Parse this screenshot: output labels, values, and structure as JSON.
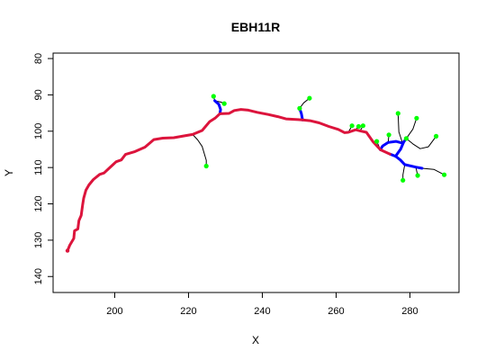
{
  "chart_data": {
    "type": "line",
    "title": "EBH11R",
    "xlabel": "X",
    "ylabel": "Y",
    "xlim": [
      183.3,
      293.3
    ],
    "ylim": [
      144.4,
      78.5
    ],
    "y_reversed": true,
    "x_ticks": [
      200,
      220,
      240,
      260,
      280
    ],
    "y_ticks": [
      80,
      90,
      100,
      110,
      120,
      130,
      140
    ],
    "grid": false,
    "legend": "none",
    "colors": {
      "main_path": "#dc143c",
      "secondary_path": "#0000ff",
      "branch": "#000000",
      "endpoint": "#00ff00"
    },
    "series": [
      {
        "role": "main_path",
        "points": [
          [
            187.2,
            132.9
          ],
          [
            187.8,
            131.4
          ],
          [
            188.9,
            129.5
          ],
          [
            189.1,
            127.4
          ],
          [
            190.0,
            126.9
          ],
          [
            190.3,
            124.6
          ],
          [
            190.9,
            123.2
          ],
          [
            191.3,
            120.3
          ],
          [
            191.6,
            118.4
          ],
          [
            192.2,
            116.2
          ],
          [
            193.0,
            114.8
          ],
          [
            194.2,
            113.3
          ],
          [
            195.9,
            111.9
          ],
          [
            197.1,
            111.5
          ],
          [
            198.7,
            110.0
          ],
          [
            200.4,
            108.4
          ],
          [
            201.8,
            107.9
          ],
          [
            202.9,
            106.4
          ],
          [
            205.5,
            105.6
          ],
          [
            208.2,
            104.4
          ],
          [
            210.6,
            102.3
          ],
          [
            213.0,
            101.9
          ],
          [
            216.0,
            101.8
          ],
          [
            219.3,
            101.2
          ],
          [
            221.1,
            100.9
          ],
          [
            223.7,
            99.8
          ],
          [
            225.7,
            97.4
          ],
          [
            227.2,
            96.4
          ],
          [
            228.5,
            95.2
          ],
          [
            231.0,
            95.1
          ],
          [
            232.4,
            94.3
          ],
          [
            234.2,
            94.0
          ],
          [
            236.2,
            94.2
          ],
          [
            238.6,
            94.8
          ],
          [
            241.6,
            95.4
          ],
          [
            244.2,
            96.0
          ],
          [
            246.4,
            96.6
          ],
          [
            249.7,
            96.8
          ],
          [
            250.9,
            96.9
          ],
          [
            252.9,
            97.1
          ],
          [
            255.4,
            97.7
          ],
          [
            258.0,
            98.7
          ],
          [
            260.6,
            99.5
          ],
          [
            262.3,
            100.4
          ],
          [
            263.3,
            100.3
          ],
          [
            265.3,
            99.6
          ],
          [
            266.5,
            99.9
          ],
          [
            268.2,
            100.3
          ],
          [
            270.0,
            102.9
          ],
          [
            272.0,
            105.1
          ],
          [
            274.6,
            106.3
          ]
        ]
      },
      {
        "role": "secondary_path",
        "points": [
          [
            228.5,
            95.2
          ],
          [
            228.7,
            94.0
          ],
          [
            228.2,
            92.6
          ],
          [
            227.1,
            91.6
          ]
        ]
      },
      {
        "role": "secondary_path",
        "points": [
          [
            250.9,
            96.9
          ],
          [
            250.6,
            95.2
          ],
          [
            250.1,
            93.7
          ]
        ]
      },
      {
        "role": "secondary_path",
        "points": [
          [
            272.0,
            105.1
          ],
          [
            272.6,
            104.1
          ],
          [
            274.1,
            103.1
          ],
          [
            276.2,
            102.8
          ],
          [
            278.0,
            103.3
          ]
        ]
      },
      {
        "role": "secondary_path",
        "points": [
          [
            274.6,
            106.3
          ],
          [
            276.1,
            106.9
          ],
          [
            277.4,
            107.9
          ],
          [
            278.6,
            109.2
          ],
          [
            281.6,
            109.9
          ],
          [
            283.3,
            110.2
          ]
        ]
      },
      {
        "role": "secondary_path",
        "points": [
          [
            276.1,
            106.9
          ],
          [
            277.5,
            104.9
          ],
          [
            278.3,
            103.0
          ],
          [
            279.0,
            102.0
          ]
        ]
      },
      {
        "role": "branch",
        "points": [
          [
            221.1,
            100.9
          ],
          [
            222.5,
            102.4
          ],
          [
            223.7,
            104.2
          ],
          [
            224.8,
            108.0
          ],
          [
            224.8,
            109.6
          ]
        ]
      },
      {
        "role": "branch",
        "points": [
          [
            227.1,
            91.6
          ],
          [
            226.8,
            90.4
          ]
        ]
      },
      {
        "role": "branch",
        "points": [
          [
            227.1,
            91.6
          ],
          [
            228.8,
            92.0
          ],
          [
            229.7,
            92.4
          ]
        ]
      },
      {
        "role": "branch",
        "points": [
          [
            250.1,
            93.7
          ],
          [
            251.2,
            92.2
          ],
          [
            252.8,
            90.9
          ]
        ]
      },
      {
        "role": "branch",
        "points": [
          [
            263.3,
            100.3
          ],
          [
            264.3,
            98.5
          ]
        ]
      },
      {
        "role": "branch",
        "points": [
          [
            265.3,
            99.6
          ],
          [
            266.1,
            98.7
          ]
        ]
      },
      {
        "role": "branch",
        "points": [
          [
            266.5,
            99.9
          ],
          [
            267.3,
            98.5
          ]
        ]
      },
      {
        "role": "branch",
        "points": [
          [
            272.0,
            105.1
          ],
          [
            271.0,
            102.8
          ]
        ]
      },
      {
        "role": "branch",
        "points": [
          [
            274.1,
            103.1
          ],
          [
            274.3,
            101.0
          ]
        ]
      },
      {
        "role": "branch",
        "points": [
          [
            278.0,
            103.3
          ],
          [
            277.0,
            100.2
          ],
          [
            276.8,
            95.1
          ]
        ]
      },
      {
        "role": "branch",
        "points": [
          [
            279.0,
            102.0
          ],
          [
            280.8,
            99.4
          ],
          [
            281.8,
            96.4
          ]
        ]
      },
      {
        "role": "branch",
        "points": [
          [
            278.6,
            109.2
          ],
          [
            278.1,
            112.0
          ],
          [
            278.1,
            113.5
          ]
        ]
      },
      {
        "role": "branch",
        "points": [
          [
            281.6,
            109.9
          ],
          [
            282.1,
            112.2
          ]
        ]
      },
      {
        "role": "branch",
        "points": [
          [
            283.3,
            110.2
          ],
          [
            286.5,
            110.5
          ],
          [
            289.3,
            112.0
          ]
        ]
      },
      {
        "role": "branch",
        "points": [
          [
            279.0,
            102.0
          ],
          [
            280.8,
            103.5
          ],
          [
            282.8,
            104.8
          ],
          [
            285.0,
            104.3
          ],
          [
            287.1,
            101.4
          ]
        ]
      }
    ],
    "endpoints": [
      [
        226.8,
        90.4
      ],
      [
        229.7,
        92.4
      ],
      [
        224.8,
        109.6
      ],
      [
        252.8,
        90.9
      ],
      [
        250.1,
        93.7
      ],
      [
        264.3,
        98.5
      ],
      [
        266.1,
        98.7
      ],
      [
        267.3,
        98.5
      ],
      [
        271.0,
        102.8
      ],
      [
        274.3,
        101.0
      ],
      [
        276.8,
        95.1
      ],
      [
        281.8,
        96.4
      ],
      [
        287.1,
        101.4
      ],
      [
        279.0,
        102.0
      ],
      [
        278.1,
        113.5
      ],
      [
        282.1,
        112.2
      ],
      [
        289.3,
        112.0
      ],
      [
        187.2,
        132.9
      ]
    ]
  }
}
